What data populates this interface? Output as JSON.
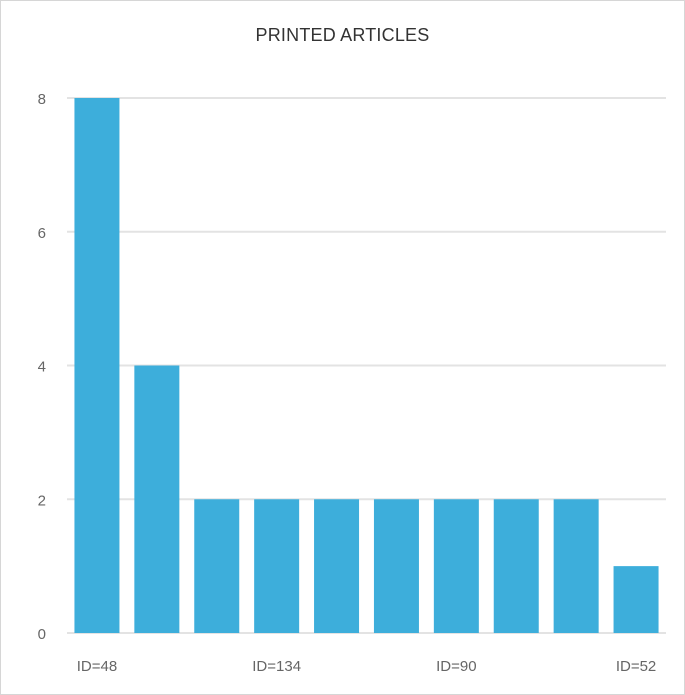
{
  "chart_data": {
    "type": "bar",
    "title": "PRINTED ARTICLES",
    "xlabel": "",
    "ylabel": "",
    "categories": [
      "ID=48",
      "",
      "",
      "ID=134",
      "",
      "",
      "ID=90",
      "",
      "",
      "ID=52"
    ],
    "values": [
      8,
      4,
      2,
      2,
      2,
      2,
      2,
      2,
      2,
      1
    ],
    "ylim": [
      0,
      8
    ],
    "yticks": [
      0,
      2,
      4,
      6,
      8
    ],
    "grid": true,
    "legend": "none",
    "bar_color": "#3daedb",
    "grid_color": "#e3e3e3"
  }
}
